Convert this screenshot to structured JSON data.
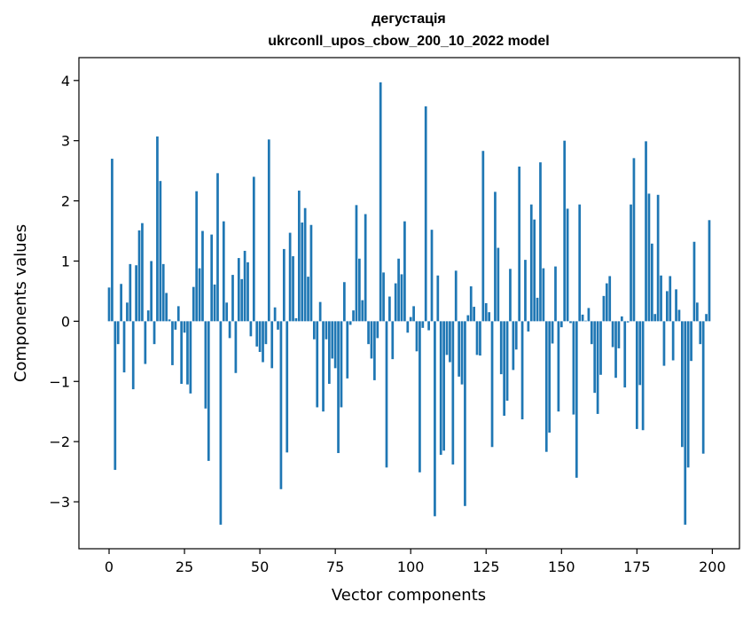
{
  "chart_data": {
    "type": "bar",
    "title": "дегустація",
    "subtitle": "ukrconll_upos_cbow_200_10_2022 model",
    "xlabel": "Vector components",
    "ylabel": "Components values",
    "xlim": [
      -10,
      209
    ],
    "ylim": [
      -3.78,
      4.38
    ],
    "xticks": [
      0,
      25,
      50,
      75,
      100,
      125,
      150,
      175,
      200
    ],
    "xtick_labels": [
      "0",
      "25",
      "50",
      "75",
      "100",
      "125",
      "150",
      "175",
      "200"
    ],
    "yticks": [
      -3,
      -2,
      -1,
      0,
      1,
      2,
      3,
      4
    ],
    "ytick_labels": [
      "−3",
      "−2",
      "−1",
      "0",
      "1",
      "2",
      "3",
      "4"
    ],
    "grid": false,
    "legend": "none",
    "bar_color": "#1f77b4",
    "values": [
      0.56,
      2.7,
      -2.47,
      -0.38,
      0.62,
      -0.85,
      0.31,
      0.95,
      -1.13,
      0.93,
      1.51,
      1.63,
      -0.71,
      0.18,
      1.0,
      -0.38,
      3.07,
      2.33,
      0.95,
      0.47,
      0.03,
      -0.73,
      -0.14,
      0.25,
      -1.04,
      -0.19,
      -1.05,
      -1.2,
      0.57,
      2.16,
      0.88,
      1.5,
      -1.45,
      -2.32,
      1.44,
      0.61,
      2.46,
      -3.38,
      1.66,
      0.31,
      -0.28,
      0.77,
      -0.86,
      1.05,
      0.7,
      1.17,
      0.98,
      -0.25,
      2.4,
      -0.42,
      -0.51,
      -0.68,
      -0.38,
      3.02,
      -0.78,
      0.23,
      -0.14,
      -2.79,
      1.2,
      -2.18,
      1.47,
      1.08,
      0.05,
      2.17,
      1.64,
      1.88,
      0.74,
      1.6,
      -0.3,
      -1.43,
      0.32,
      -1.5,
      -0.3,
      -1.04,
      -0.62,
      -0.78,
      -2.19,
      -1.43,
      0.65,
      -0.95,
      -0.06,
      0.18,
      1.93,
      1.04,
      0.35,
      1.78,
      -0.38,
      -0.62,
      -0.98,
      -0.28,
      3.97,
      0.81,
      -2.43,
      0.41,
      -0.63,
      0.63,
      1.04,
      0.78,
      1.66,
      -0.19,
      0.07,
      0.25,
      -0.5,
      -2.51,
      -0.11,
      3.57,
      -0.15,
      1.52,
      -3.24,
      0.76,
      -2.22,
      -2.15,
      -0.56,
      -0.68,
      -2.38,
      0.84,
      -0.92,
      -1.05,
      -3.07,
      0.1,
      0.58,
      0.24,
      -0.56,
      -0.57,
      2.83,
      0.3,
      0.15,
      -2.09,
      2.15,
      1.22,
      -0.88,
      -1.57,
      -1.32,
      0.87,
      -0.81,
      -0.47,
      2.57,
      -1.63,
      1.02,
      -0.17,
      1.94,
      1.69,
      0.39,
      2.64,
      0.88,
      -2.17,
      -1.85,
      -0.37,
      0.91,
      -1.5,
      -0.1,
      3.0,
      1.87,
      -0.03,
      -1.55,
      -2.6,
      1.94,
      0.11,
      0.01,
      0.22,
      -0.38,
      -1.19,
      -1.54,
      -0.89,
      0.42,
      0.63,
      0.75,
      -0.43,
      -0.94,
      -0.45,
      0.08,
      -1.1,
      -0.02,
      1.94,
      2.71,
      -1.79,
      -1.06,
      -1.81,
      2.99,
      2.12,
      1.29,
      0.12,
      2.1,
      0.76,
      -0.74,
      0.5,
      0.75,
      -0.65,
      0.53,
      0.19,
      -2.09,
      -3.38,
      -2.43,
      -0.66,
      1.32,
      0.31,
      -0.38,
      -2.2,
      0.12,
      1.68
    ]
  }
}
